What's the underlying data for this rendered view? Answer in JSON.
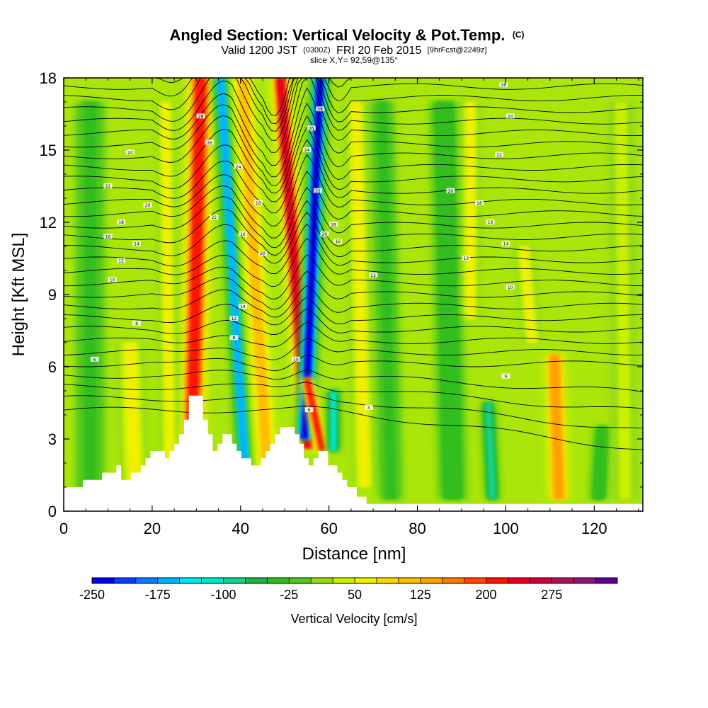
{
  "header": {
    "title_main": "Angled Section: Vertical Velocity & Pot.Temp.",
    "title_suffix": "(C)",
    "valid_prefix": "Valid 1200 JST",
    "valid_zulu": "(0300Z)",
    "valid_date": "FRI 20 Feb 2015",
    "valid_fcst": "[9hrFcst@2249z]",
    "slice_info": "slice X,Y= 92,59@135°"
  },
  "colorbar": {
    "label": "Vertical Velocity [cm/s]",
    "tick_labels": [
      "-250",
      "-175",
      "-100",
      "-25",
      "50",
      "125",
      "200",
      "275"
    ],
    "colors": [
      "#0000e6",
      "#0a3cff",
      "#0a78ff",
      "#00b4ff",
      "#00e6f0",
      "#00e6c8",
      "#14d28c",
      "#1eb446",
      "#32be1e",
      "#50c81e",
      "#96dc14",
      "#c8f000",
      "#f0f000",
      "#ffd700",
      "#ffbe00",
      "#ffa000",
      "#ff7800",
      "#ff4600",
      "#ff1400",
      "#e6001e",
      "#c8003c",
      "#aa145a",
      "#8c1478",
      "#5a0096"
    ]
  },
  "chart_data": {
    "type": "heatmap",
    "title": "Angled Section: Vertical Velocity & Pot.Temp.",
    "xlabel": "Distance [nm]",
    "ylabel": "Height [Kft MSL]",
    "xlim": [
      0,
      131
    ],
    "ylim": [
      0,
      18
    ],
    "x_ticks": [
      0,
      20,
      40,
      60,
      80,
      100,
      120
    ],
    "y_ticks": [
      0,
      3,
      6,
      9,
      12,
      15,
      18
    ],
    "x_tick_labels": [
      "0",
      "20",
      "40",
      "60",
      "80",
      "100",
      "120"
    ],
    "y_tick_labels": [
      "0",
      "3",
      "6",
      "9",
      "12",
      "15",
      "18"
    ],
    "grid": false,
    "legend": "colorbar-bottom",
    "velocity_bands": [
      {
        "x_top": 31,
        "x_bottom": 29,
        "y_from": 2.5,
        "y_to": 18,
        "width": 2.8,
        "w": 220
      },
      {
        "x_top": 35.5,
        "x_bottom": 41,
        "y_from": 1.8,
        "y_to": 18,
        "width": 1.8,
        "w": -160
      },
      {
        "x_top": 40.5,
        "x_bottom": 46,
        "y_from": 1.8,
        "y_to": 18,
        "width": 2.6,
        "w": 110
      },
      {
        "x_top": 49,
        "x_bottom": 55.3,
        "y_from": 2.6,
        "y_to": 18,
        "width": 2.2,
        "w": 240
      },
      {
        "x_top": 58,
        "x_bottom": 54.5,
        "y_from": 3.0,
        "y_to": 18,
        "width": 2.0,
        "w": -250
      },
      {
        "x_top": 55,
        "x_bottom": 58.5,
        "y_from": 2.5,
        "y_to": 5.5,
        "width": 1.5,
        "w": 200
      },
      {
        "x_top": 61,
        "x_bottom": 61,
        "y_from": 2.5,
        "y_to": 5.0,
        "width": 1.5,
        "w": -110
      },
      {
        "x_top": 66,
        "x_bottom": 68,
        "y_from": 1.0,
        "y_to": 17.0,
        "width": 2.5,
        "w": 70
      },
      {
        "x_top": 111,
        "x_bottom": 112,
        "y_from": 0.5,
        "y_to": 6.5,
        "width": 2.5,
        "w": 125
      },
      {
        "x_top": 104,
        "x_bottom": 106,
        "y_from": 7.0,
        "y_to": 11.0,
        "width": 2.0,
        "w": 60
      },
      {
        "x_top": 15,
        "x_bottom": 16,
        "y_from": 1.0,
        "y_to": 7.0,
        "width": 3.0,
        "w": 60
      },
      {
        "x_top": 23,
        "x_bottom": 24,
        "y_from": 1.5,
        "y_to": 17.0,
        "width": 2.0,
        "w": 55
      },
      {
        "x_top": 96,
        "x_bottom": 97,
        "y_from": 0.5,
        "y_to": 4.5,
        "width": 1.5,
        "w": -90
      },
      {
        "x_top": 122,
        "x_bottom": 121,
        "y_from": 0.5,
        "y_to": 3.5,
        "width": 2.0,
        "w": -50
      },
      {
        "x_top": 72,
        "x_bottom": 74,
        "y_from": 0.5,
        "y_to": 17.0,
        "width": 2.5,
        "w": -40
      },
      {
        "x_top": 86,
        "x_bottom": 88,
        "y_from": 0.5,
        "y_to": 17.0,
        "width": 3.0,
        "w": -45
      },
      {
        "x_top": 6,
        "x_bottom": 6,
        "y_from": 0.5,
        "y_to": 17.0,
        "width": 3.0,
        "w": -35
      },
      {
        "x_top": 126,
        "x_bottom": 127,
        "y_from": 0.5,
        "y_to": 17.0,
        "width": 3.0,
        "w": 40
      },
      {
        "x_top": 92,
        "x_bottom": 92,
        "y_from": 8.0,
        "y_to": 17.0,
        "width": 2.0,
        "w": 50
      }
    ],
    "terrain": [
      [
        0,
        1.0
      ],
      [
        4.3,
        1.0
      ],
      [
        4.3,
        1.3
      ],
      [
        8.7,
        1.3
      ],
      [
        8.7,
        1.6
      ],
      [
        11.9,
        1.6
      ],
      [
        11.9,
        1.9
      ],
      [
        13.0,
        1.9
      ],
      [
        13.0,
        1.3
      ],
      [
        15.2,
        1.3
      ],
      [
        15.2,
        1.6
      ],
      [
        17.4,
        1.6
      ],
      [
        17.4,
        1.9
      ],
      [
        18.5,
        1.9
      ],
      [
        18.5,
        2.2
      ],
      [
        19.6,
        2.2
      ],
      [
        19.6,
        2.5
      ],
      [
        22.9,
        2.5
      ],
      [
        22.9,
        2.2
      ],
      [
        23.9,
        2.2
      ],
      [
        23.9,
        2.5
      ],
      [
        25.0,
        2.5
      ],
      [
        25.0,
        2.8
      ],
      [
        26.1,
        2.8
      ],
      [
        26.1,
        3.2
      ],
      [
        27.2,
        3.2
      ],
      [
        27.2,
        3.8
      ],
      [
        28.3,
        3.8
      ],
      [
        28.3,
        4.8
      ],
      [
        31.5,
        4.8
      ],
      [
        31.5,
        3.8
      ],
      [
        32.6,
        3.8
      ],
      [
        32.6,
        3.2
      ],
      [
        33.7,
        3.2
      ],
      [
        33.7,
        2.5
      ],
      [
        34.8,
        2.5
      ],
      [
        34.8,
        2.8
      ],
      [
        35.9,
        2.8
      ],
      [
        35.9,
        3.2
      ],
      [
        38.0,
        3.2
      ],
      [
        38.0,
        2.8
      ],
      [
        39.1,
        2.8
      ],
      [
        39.1,
        2.5
      ],
      [
        40.2,
        2.5
      ],
      [
        40.2,
        2.2
      ],
      [
        42.4,
        2.2
      ],
      [
        42.4,
        1.9
      ],
      [
        44.6,
        1.9
      ],
      [
        44.6,
        2.2
      ],
      [
        45.7,
        2.2
      ],
      [
        45.7,
        2.5
      ],
      [
        46.7,
        2.5
      ],
      [
        46.7,
        2.8
      ],
      [
        47.8,
        2.8
      ],
      [
        47.8,
        3.2
      ],
      [
        48.9,
        3.2
      ],
      [
        48.9,
        3.5
      ],
      [
        52.2,
        3.5
      ],
      [
        52.2,
        3.2
      ],
      [
        53.3,
        3.2
      ],
      [
        53.3,
        2.8
      ],
      [
        54.3,
        2.8
      ],
      [
        54.3,
        2.2
      ],
      [
        55.4,
        2.2
      ],
      [
        55.4,
        1.9
      ],
      [
        56.5,
        1.9
      ],
      [
        56.5,
        2.2
      ],
      [
        57.6,
        2.2
      ],
      [
        57.6,
        2.5
      ],
      [
        59.8,
        2.5
      ],
      [
        59.8,
        1.9
      ],
      [
        61.9,
        1.9
      ],
      [
        61.9,
        1.6
      ],
      [
        63.0,
        1.6
      ],
      [
        63.0,
        1.3
      ],
      [
        64.1,
        1.3
      ],
      [
        64.1,
        1.0
      ],
      [
        66.3,
        1.0
      ],
      [
        66.3,
        0.6
      ],
      [
        68.5,
        0.6
      ],
      [
        68.5,
        0.3
      ],
      [
        131,
        0.3
      ],
      [
        131,
        0
      ],
      [
        0,
        0
      ]
    ],
    "isentrope_labels": [
      {
        "x": 7,
        "y": 6.3,
        "text": "6"
      },
      {
        "x": 11,
        "y": 9.6,
        "text": "10"
      },
      {
        "x": 13,
        "y": 10.4,
        "text": "12"
      },
      {
        "x": 16.5,
        "y": 7.8,
        "text": "8"
      },
      {
        "x": 16.5,
        "y": 11.1,
        "text": "14"
      },
      {
        "x": 10,
        "y": 11.4,
        "text": "16"
      },
      {
        "x": 13,
        "y": 12.0,
        "text": "18"
      },
      {
        "x": 19,
        "y": 12.7,
        "text": "20"
      },
      {
        "x": 10,
        "y": 13.5,
        "text": "22"
      },
      {
        "x": 15,
        "y": 14.9,
        "text": "24"
      },
      {
        "x": 31,
        "y": 16.4,
        "text": "28"
      },
      {
        "x": 33,
        "y": 15.3,
        "text": "26"
      },
      {
        "x": 39.5,
        "y": 14.3,
        "text": "24"
      },
      {
        "x": 34,
        "y": 12.2,
        "text": "22"
      },
      {
        "x": 44,
        "y": 12.8,
        "text": "18"
      },
      {
        "x": 40.5,
        "y": 11.5,
        "text": "16"
      },
      {
        "x": 45,
        "y": 10.7,
        "text": "20"
      },
      {
        "x": 40.5,
        "y": 8.5,
        "text": "14"
      },
      {
        "x": 38.5,
        "y": 8.0,
        "text": "12"
      },
      {
        "x": 38.5,
        "y": 7.2,
        "text": "8"
      },
      {
        "x": 52.5,
        "y": 6.3,
        "text": "10"
      },
      {
        "x": 55.5,
        "y": 4.2,
        "text": "6"
      },
      {
        "x": 56,
        "y": 15.9,
        "text": "26"
      },
      {
        "x": 55,
        "y": 15.0,
        "text": "24"
      },
      {
        "x": 58,
        "y": 16.7,
        "text": "28"
      },
      {
        "x": 57.5,
        "y": 13.3,
        "text": "22"
      },
      {
        "x": 59,
        "y": 11.5,
        "text": "20"
      },
      {
        "x": 61,
        "y": 11.9,
        "text": "18"
      },
      {
        "x": 62,
        "y": 11.2,
        "text": "16"
      },
      {
        "x": 70,
        "y": 9.8,
        "text": "12"
      },
      {
        "x": 69,
        "y": 4.3,
        "text": "4"
      },
      {
        "x": 100,
        "y": 5.6,
        "text": "6"
      },
      {
        "x": 101,
        "y": 9.3,
        "text": "10"
      },
      {
        "x": 91,
        "y": 10.5,
        "text": "13"
      },
      {
        "x": 100,
        "y": 11.1,
        "text": "14"
      },
      {
        "x": 96.5,
        "y": 12.0,
        "text": "16"
      },
      {
        "x": 94,
        "y": 12.8,
        "text": "18"
      },
      {
        "x": 87.5,
        "y": 13.3,
        "text": "20"
      },
      {
        "x": 98.5,
        "y": 14.8,
        "text": "22"
      },
      {
        "x": 101,
        "y": 16.4,
        "text": "24"
      },
      {
        "x": 99.5,
        "y": 17.7,
        "text": "26"
      }
    ]
  }
}
